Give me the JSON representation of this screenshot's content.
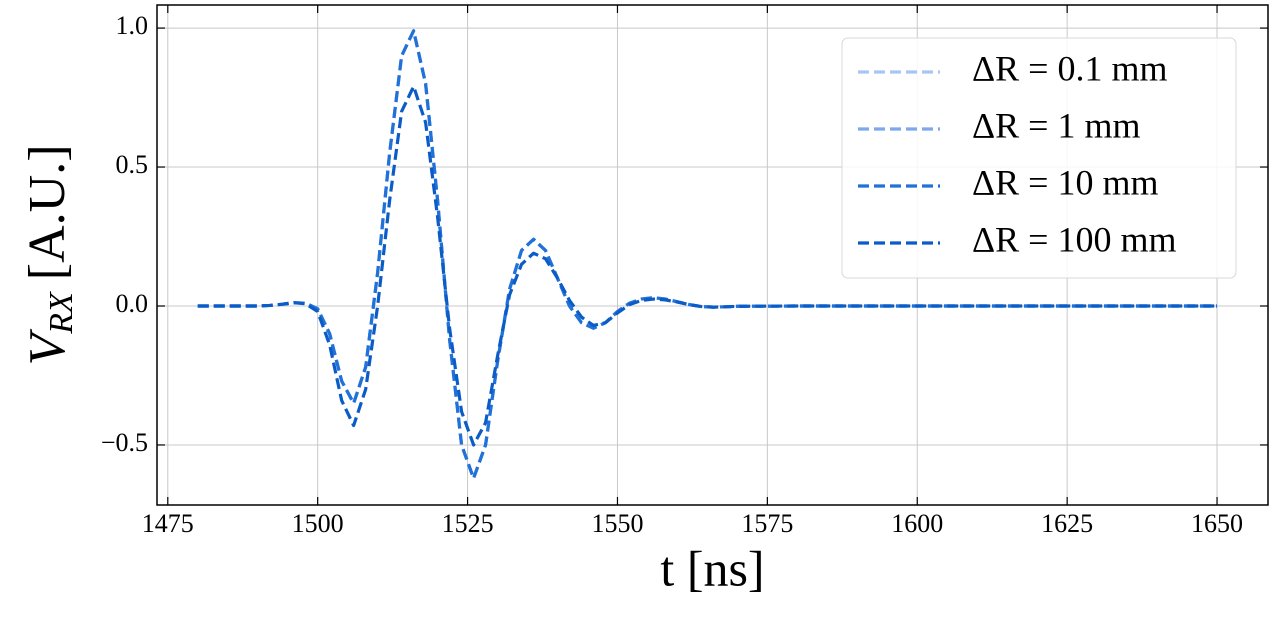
{
  "chart_data": {
    "type": "line",
    "x_label": "t [ns]",
    "y_label": {
      "symbol": "V",
      "subscript": "RX",
      "unit": "[A.U.]"
    },
    "x": [
      1480,
      1482,
      1484,
      1486,
      1488,
      1490,
      1492,
      1494,
      1496,
      1498,
      1500,
      1502,
      1504,
      1506,
      1508,
      1510,
      1512,
      1514,
      1516,
      1518,
      1520,
      1522,
      1524,
      1526,
      1528,
      1530,
      1532,
      1534,
      1536,
      1538,
      1540,
      1542,
      1544,
      1546,
      1548,
      1550,
      1552,
      1554,
      1556,
      1558,
      1560,
      1562,
      1564,
      1566,
      1568,
      1570,
      1580,
      1590,
      1600,
      1610,
      1620,
      1630,
      1640,
      1650
    ],
    "series": [
      {
        "name": "ΔR = 0.1 mm",
        "color": "#a9c5f4",
        "values": [
          0,
          0,
          0,
          0,
          0,
          0,
          0.002,
          0.006,
          0.012,
          0.01,
          -0.01,
          -0.1,
          -0.27,
          -0.35,
          -0.22,
          0.12,
          0.55,
          0.9,
          0.99,
          0.8,
          0.38,
          -0.12,
          -0.5,
          -0.62,
          -0.5,
          -0.2,
          0.06,
          0.2,
          0.24,
          0.2,
          0.1,
          0.0,
          -0.06,
          -0.08,
          -0.06,
          -0.02,
          0.01,
          0.025,
          0.03,
          0.025,
          0.015,
          0.005,
          -0.002,
          -0.004,
          -0.003,
          -0.001,
          0,
          0,
          0,
          0,
          0,
          0,
          0,
          0
        ]
      },
      {
        "name": "ΔR = 1 mm",
        "color": "#7ea8ec",
        "values": [
          0,
          0,
          0,
          0,
          0,
          0,
          0.002,
          0.006,
          0.012,
          0.01,
          -0.01,
          -0.1,
          -0.27,
          -0.35,
          -0.22,
          0.12,
          0.55,
          0.9,
          0.99,
          0.8,
          0.38,
          -0.12,
          -0.5,
          -0.62,
          -0.5,
          -0.2,
          0.06,
          0.2,
          0.24,
          0.2,
          0.1,
          0.0,
          -0.06,
          -0.08,
          -0.06,
          -0.02,
          0.01,
          0.025,
          0.03,
          0.025,
          0.015,
          0.005,
          -0.002,
          -0.004,
          -0.003,
          -0.001,
          0,
          0,
          0,
          0,
          0,
          0,
          0,
          0
        ]
      },
      {
        "name": "ΔR = 10 mm",
        "color": "#2172d8",
        "values": [
          0,
          0,
          0,
          0,
          0,
          0,
          0.002,
          0.006,
          0.012,
          0.01,
          -0.01,
          -0.1,
          -0.27,
          -0.35,
          -0.22,
          0.12,
          0.55,
          0.9,
          0.99,
          0.8,
          0.38,
          -0.12,
          -0.5,
          -0.62,
          -0.5,
          -0.2,
          0.06,
          0.2,
          0.24,
          0.2,
          0.1,
          0.0,
          -0.06,
          -0.08,
          -0.06,
          -0.02,
          0.01,
          0.025,
          0.03,
          0.025,
          0.015,
          0.005,
          -0.002,
          -0.004,
          -0.003,
          -0.001,
          0,
          0,
          0,
          0,
          0,
          0,
          0,
          0
        ]
      },
      {
        "name": "ΔR = 100 mm",
        "color": "#0b5cc6",
        "values": [
          0,
          0,
          0,
          0,
          0,
          0,
          0.002,
          0.006,
          0.012,
          0.008,
          -0.02,
          -0.14,
          -0.34,
          -0.43,
          -0.3,
          0.0,
          0.38,
          0.7,
          0.79,
          0.66,
          0.32,
          -0.08,
          -0.38,
          -0.5,
          -0.42,
          -0.18,
          0.04,
          0.15,
          0.19,
          0.17,
          0.1,
          0.02,
          -0.04,
          -0.07,
          -0.06,
          -0.025,
          0.005,
          0.02,
          0.025,
          0.022,
          0.014,
          0.005,
          -0.002,
          -0.004,
          -0.003,
          -0.001,
          0,
          0,
          0,
          0,
          0,
          0,
          0,
          0
        ]
      }
    ],
    "xlim": [
      1473.2,
      1658.5
    ],
    "ylim": [
      -0.716,
      1.083
    ],
    "xticks": [
      1475,
      1500,
      1525,
      1550,
      1575,
      1600,
      1625,
      1650
    ],
    "yticks": [
      {
        "value": -0.5,
        "label": "−0.5"
      },
      {
        "value": 0,
        "label": "0.0"
      },
      {
        "value": 0.5,
        "label": "0.5"
      },
      {
        "value": 1,
        "label": "1.0"
      }
    ],
    "grid": true,
    "legend": "upper right",
    "dashed": true
  }
}
